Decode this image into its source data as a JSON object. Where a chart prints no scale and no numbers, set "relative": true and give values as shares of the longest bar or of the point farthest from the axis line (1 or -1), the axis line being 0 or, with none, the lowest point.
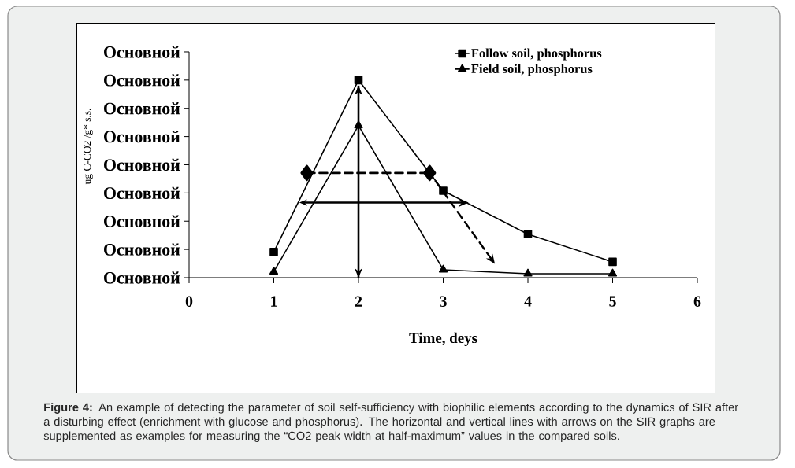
{
  "chart_data": {
    "type": "line",
    "xlabel": "Time, deys",
    "relative": true,
    "x": [
      1,
      2,
      3,
      4,
      5
    ],
    "xlim": [
      0,
      6
    ],
    "xticks": [
      0,
      1,
      2,
      3,
      4,
      5,
      6
    ],
    "series": [
      {
        "name": "Follow soil, phosphorus",
        "color": "#000000",
        "marker": "square",
        "values": [
          0.13,
          1,
          0.44,
          0.22,
          0.08
        ]
      },
      {
        "name": "Field soil, phosphorus",
        "color": "#000000",
        "marker": "triangle",
        "values": [
          0.03,
          0.77,
          0.04,
          0.02,
          0.02
        ]
      },
      {
        "color": "#000000",
        "x": [
          1.39,
          2.84
        ],
        "values": [
          0.53,
          0.53
        ],
        "line_style": "dashed",
        "marker": "diamond"
      }
    ],
    "ref_lines": [
      {
        "axis": "x",
        "value": 2,
        "color": "#000000",
        "line_style": "solid"
      }
    ],
    "legend": "top right",
    "line_style": "solid",
    "annotations": [
      "Основной",
      "Основной",
      "Основной",
      "Основной",
      "Основной",
      "Основной",
      "Основной",
      "Основной",
      "Основной",
      "ug C-CO2 /g* s.s.",
      "**Figure 4:** An example of detecting the parameter of soil self-sufficiency with biophilic elements according to the dynamics of SIR after a disturbing effect (enrichment with glucose and phosphorus). The horizontal and vertical lines with arrows on the SIR graphs are supplemented as examples for measuring the “CO2 peak width at half-maximum” values in the compared soils."
    ]
  }
}
